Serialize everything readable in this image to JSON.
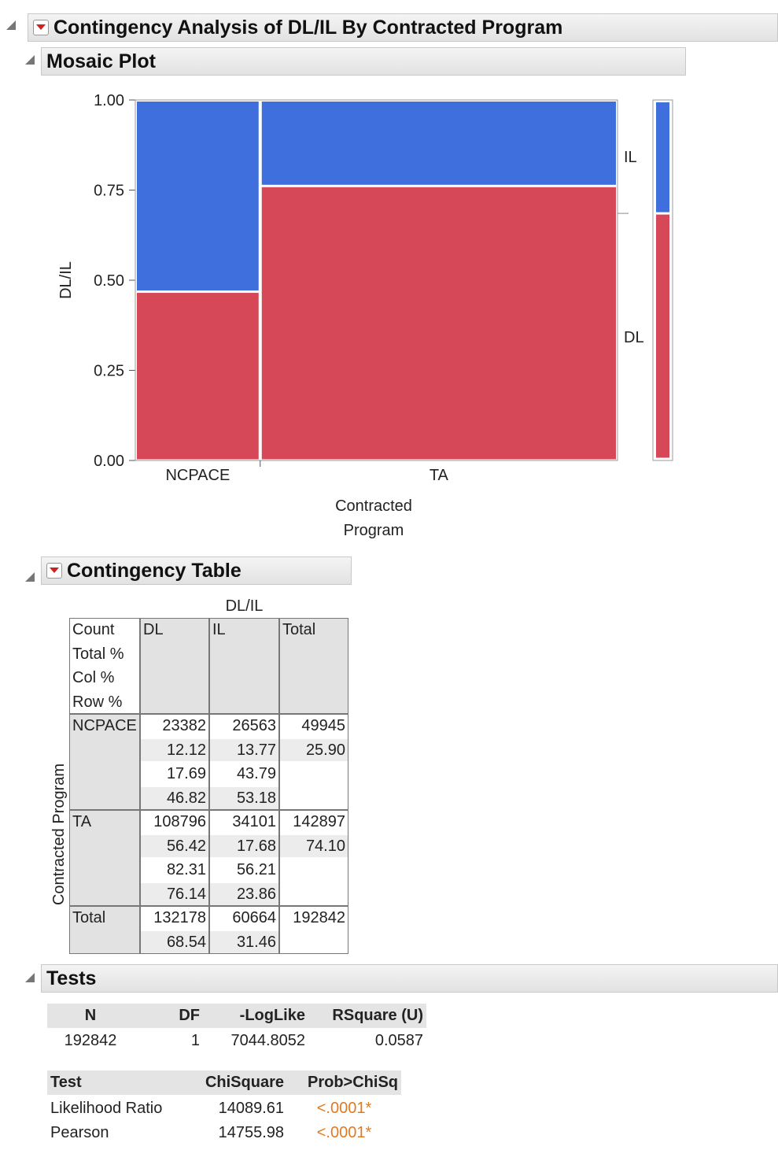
{
  "header": {
    "title": "Contingency Analysis of DL/IL By Contracted Program"
  },
  "mosaic": {
    "title": "Mosaic Plot",
    "y_label": "DL/IL",
    "x_label": "Contracted Program",
    "yticks": [
      {
        "value": 0,
        "label": "0.00"
      },
      {
        "value": 0.25,
        "label": "0.25"
      },
      {
        "value": 0.5,
        "label": "0.50"
      },
      {
        "value": 0.75,
        "label": "0.75"
      },
      {
        "value": 1,
        "label": "1.00"
      }
    ],
    "levels": [
      "DL",
      "IL"
    ],
    "colors": [
      "#d64758",
      "#3f6fdc"
    ]
  },
  "table": {
    "title": "Contingency Table",
    "col_var": "DL/IL",
    "row_var": "Contracted Program",
    "stat_labels": [
      "Count",
      "Total %",
      "Col %",
      "Row %"
    ],
    "columns": [
      "DL",
      "IL",
      "Total"
    ],
    "rows": [
      {
        "name": "NCPACE",
        "cells": [
          [
            "23382",
            "12.12",
            "17.69",
            "46.82"
          ],
          [
            "26563",
            "13.77",
            "43.79",
            "53.18"
          ],
          [
            "49945",
            "25.90"
          ]
        ]
      },
      {
        "name": "TA",
        "cells": [
          [
            "108796",
            "56.42",
            "82.31",
            "76.14"
          ],
          [
            "34101",
            "17.68",
            "56.21",
            "23.86"
          ],
          [
            "142897",
            "74.10"
          ]
        ]
      },
      {
        "name": "Total",
        "cells": [
          [
            "132178",
            "68.54"
          ],
          [
            "60664",
            "31.46"
          ],
          [
            "192842"
          ]
        ]
      }
    ]
  },
  "tests": {
    "title": "Tests",
    "summary": {
      "headers": [
        "N",
        "DF",
        "-LogLike",
        "RSquare (U)"
      ],
      "values": [
        "192842",
        "1",
        "7044.8052",
        "0.0587"
      ]
    },
    "tests": {
      "headers": [
        "Test",
        "ChiSquare",
        "Prob>ChiSq"
      ],
      "rows": [
        [
          "Likelihood Ratio",
          "14089.61",
          "<.0001*"
        ],
        [
          "Pearson",
          "14755.98",
          "<.0001*"
        ]
      ]
    }
  }
}
